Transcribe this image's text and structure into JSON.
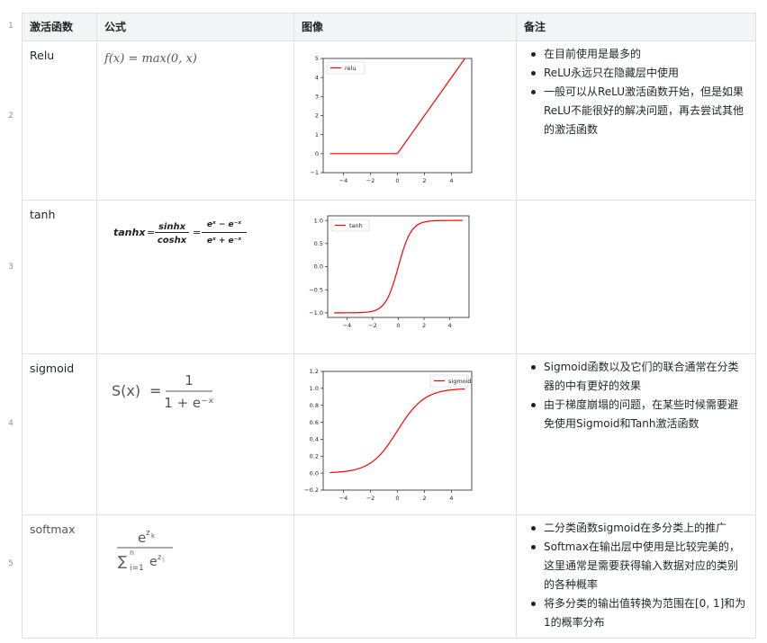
{
  "headers": [
    "激活函数",
    "公式",
    "图像",
    "备注"
  ],
  "row_numbers": [
    "1",
    "2",
    "3",
    "4",
    "5"
  ],
  "rows": [
    {
      "name": "Relu",
      "formula": "f(x) = max(0, x)",
      "notes": [
        "在目前使用是最多的",
        "ReLU永远只在隐藏层中使用",
        "一般可以从ReLU激活函数开始，但是如果ReLU不能很好的解决问题，再去尝试其他的激活函数"
      ]
    },
    {
      "name": "tanh",
      "formula": {
        "lhs": "tanhx",
        "num1": "sinhx",
        "den1": "coshx",
        "num2": "eˣ − e⁻ˣ",
        "den2": "eˣ + e⁻ˣ"
      },
      "notes": []
    },
    {
      "name": "sigmoid",
      "formula": {
        "lhs": "S(x)",
        "num": "1",
        "den": "1 + e⁻ˣ"
      },
      "notes": [
        "Sigmoid函数以及它们的联合通常在分类器的中有更好的效果",
        "由于梯度崩塌的问题，在某些时候需要避免使用Sigmoid和Tanh激活函数"
      ]
    },
    {
      "name": "softmax",
      "formula": {
        "num": "e^zk",
        "den": "∑ e^zi",
        "sum_lower": "i=1",
        "sum_upper": "n"
      },
      "notes": [
        "二分类函数sigmoid在多分类上的推广",
        "Softmax在输出层中使用是比较完美的，这里通常是需要获得输入数据对应的类别的各种概率",
        "将多分类的输出值转换为范围在[0, 1]和为1的概率分布"
      ]
    }
  ],
  "chart_data": [
    {
      "type": "line",
      "series": [
        {
          "name": "relu",
          "function": "max(0,x)",
          "x": [
            -5,
            0,
            5
          ],
          "y": [
            0,
            0,
            5
          ]
        }
      ],
      "xlim": [
        -5.5,
        5.5
      ],
      "ylim": [
        -1,
        5
      ],
      "xticks": [
        "−4",
        "−2",
        "0",
        "2",
        "4"
      ],
      "yticks": [
        "−1",
        "0",
        "1",
        "2",
        "3",
        "4",
        "5"
      ],
      "color": "#ff0000",
      "legend": "top-left"
    },
    {
      "type": "line",
      "series": [
        {
          "name": "tanh",
          "function": "tanh(x)",
          "x_range": [
            -5,
            5
          ]
        }
      ],
      "xlim": [
        -5.5,
        5.5
      ],
      "ylim": [
        -1.1,
        1.1
      ],
      "xticks": [
        "−4",
        "−2",
        "0",
        "2",
        "4"
      ],
      "yticks": [
        "−1.0",
        "−0.5",
        "0.0",
        "0.5",
        "1.0"
      ],
      "color": "#ff0000",
      "legend": "top-left"
    },
    {
      "type": "line",
      "series": [
        {
          "name": "sigmoid",
          "function": "1/(1+exp(-x))",
          "x_range": [
            -5,
            5
          ]
        }
      ],
      "xlim": [
        -5.5,
        5.5
      ],
      "ylim": [
        -0.2,
        1.2
      ],
      "xticks": [
        "−4",
        "−2",
        "0",
        "2",
        "4"
      ],
      "yticks": [
        "−0.2",
        "0.0",
        "0.2",
        "0.4",
        "0.6",
        "0.8",
        "1.0",
        "1.2"
      ],
      "color": "#ff0000",
      "legend": "top-right"
    }
  ]
}
